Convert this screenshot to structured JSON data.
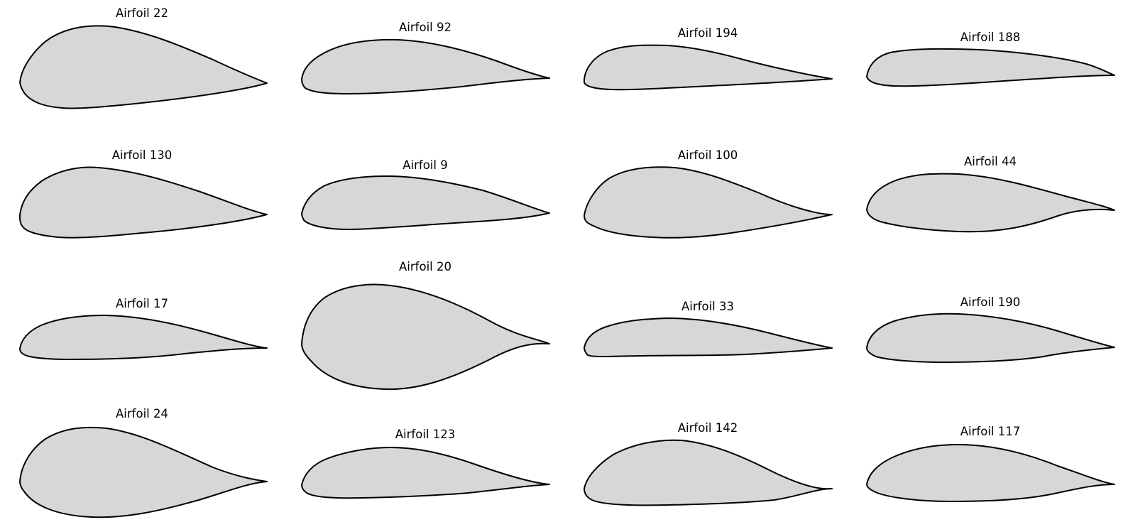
{
  "figure": {
    "rows": 4,
    "columns": 4,
    "fill_color": "#d7d7d7",
    "stroke_color": "#000000",
    "background": "#ffffff"
  },
  "airfoils": [
    {
      "label": "Airfoil 22"
    },
    {
      "label": "Airfoil 92"
    },
    {
      "label": "Airfoil 194"
    },
    {
      "label": "Airfoil 188"
    },
    {
      "label": "Airfoil 130"
    },
    {
      "label": "Airfoil 9"
    },
    {
      "label": "Airfoil 100"
    },
    {
      "label": "Airfoil 44"
    },
    {
      "label": "Airfoil 17"
    },
    {
      "label": "Airfoil 20"
    },
    {
      "label": "Airfoil 33"
    },
    {
      "label": "Airfoil 190"
    },
    {
      "label": "Airfoil 24"
    },
    {
      "label": "Airfoil 123"
    },
    {
      "label": "Airfoil 142"
    },
    {
      "label": "Airfoil 117"
    }
  ]
}
